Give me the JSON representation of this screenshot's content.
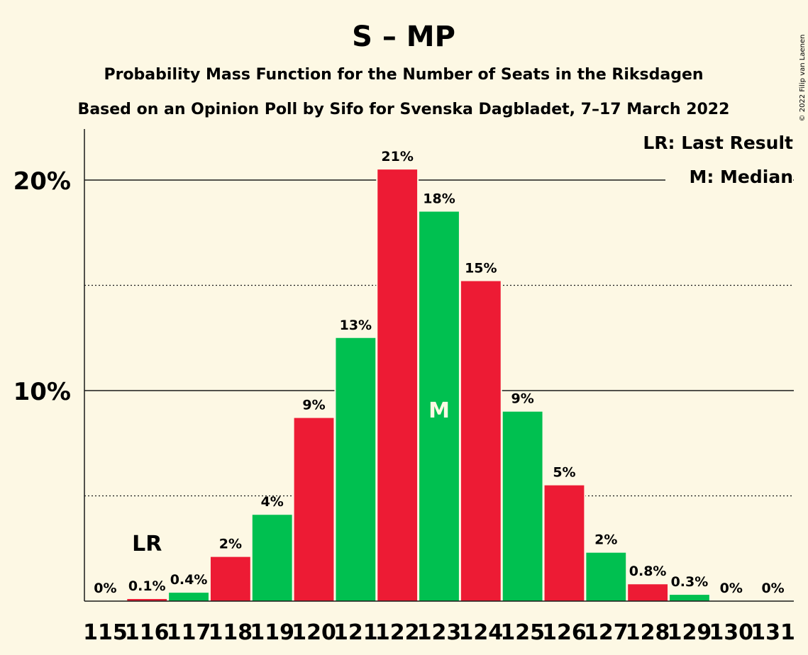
{
  "chart_data": {
    "type": "bar",
    "title": "S – MP",
    "subtitle1": "Probability Mass Function for the Number of Seats in the Riksdagen",
    "subtitle2": "Based on an Opinion Poll by Sifo for Svenska Dagbladet, 7–17 March 2022",
    "copyright": "© 2022 Filip van Laenen",
    "legend": [
      "LR: Last Result",
      "M: Median"
    ],
    "legend_position": "top-right",
    "ylim": [
      0,
      22.4
    ],
    "yticks": [
      {
        "value": 10,
        "label": "10%"
      },
      {
        "value": 20,
        "label": "20%"
      }
    ],
    "dotted_gridlines": [
      5,
      15
    ],
    "categories": [
      "115",
      "116",
      "117",
      "118",
      "119",
      "120",
      "121",
      "122",
      "123",
      "124",
      "125",
      "126",
      "127",
      "128",
      "129",
      "130",
      "131"
    ],
    "values": [
      0,
      0.1,
      0.4,
      2.1,
      4.1,
      8.7,
      12.5,
      20.5,
      18.5,
      15.2,
      9.0,
      5.5,
      2.3,
      0.8,
      0.3,
      0,
      0
    ],
    "labels": [
      "0%",
      "0.1%",
      "0.4%",
      "2%",
      "4%",
      "9%",
      "13%",
      "21%",
      "18%",
      "15%",
      "9%",
      "5%",
      "2%",
      "0.8%",
      "0.3%",
      "0%",
      "0%"
    ],
    "last_result": {
      "category": "116",
      "text": "LR"
    },
    "median": {
      "category": "123",
      "text": "M"
    },
    "colors": {
      "red": "#ed1b34",
      "green": "#00c050",
      "background": "#fdf8e4",
      "text": "#1a1a1a"
    },
    "grid": true
  }
}
